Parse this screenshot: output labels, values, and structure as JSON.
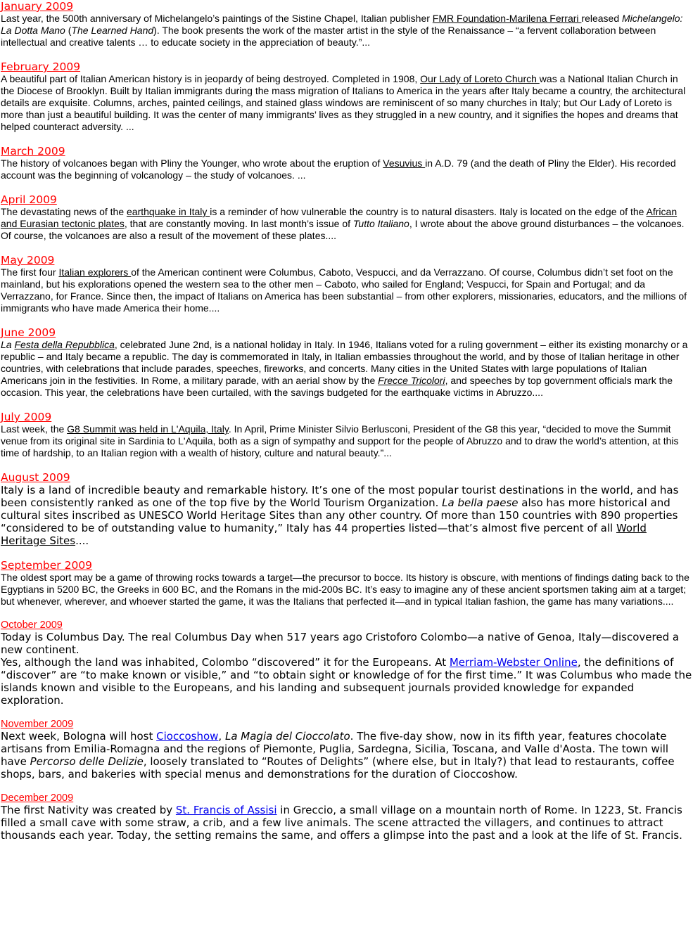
{
  "entries": {
    "jan": {
      "heading": "January 2009",
      "t1": " Last year, the 500th anniversary of Michelangelo’s paintings of the Sistine Chapel, Italian publisher ",
      "link1": "FMR Foundation-Marilena Ferrari ",
      "t2": "released ",
      "i1": "Michelangelo: La Dotta Mano",
      "t3": " (",
      "i2": "The Learned Hand",
      "t4": "). The book presents the work of the master artist in the style of the Renaissance – “a fervent collaboration between intellectual and creative talents … to educate society in the appreciation of beauty.”..."
    },
    "feb": {
      "heading": "February 2009",
      "t1": " A beautiful part of Italian American history is in jeopardy of being destroyed. Completed in 1908, ",
      "link1": "Our Lady of Loreto Church ",
      "t2": "was a National Italian Church in the Diocese of Brooklyn. Built by Italian immigrants during the mass migration of Italians to America in the years after Italy became a country, the architectural details are exquisite. Columns, arches, painted ceilings, and stained glass windows are reminiscent of so many churches in Italy; but Our Lady of Loreto is more than just a beautiful building. It was the center of many immigrants’ lives as they struggled in a new country, and it signifies the hopes and dreams that helped counteract adversity. ..."
    },
    "mar": {
      "heading": "March 2009",
      "t1": " The history of volcanoes began with Pliny the Younger, who wrote about the eruption of ",
      "link1": "Vesuvius ",
      "t2": "in A.D. 79 (and the death of Pliny the Elder). His recorded account was the beginning of volcanology – the study of volcanoes. ..."
    },
    "apr": {
      "heading": "April 2009",
      "t1": " The devastating news of the ",
      "link1": "earthquake in Italy ",
      "t2": "is a reminder of how vulnerable the country is to natural disasters. Italy is located on the edge of the ",
      "link2": "African and Eurasian tectonic plates",
      "t3": ", that are constantly moving. In last month’s issue of ",
      "i1": "Tutto Italiano",
      "t4": ", I wrote about the above ground disturbances – the volcanoes. Of course, the volcanoes are also a result of the movement of these plates...."
    },
    "may": {
      "heading": "May 2009",
      "t1": " The first four ",
      "link1": "Italian explorers ",
      "t2": "of the American continent were Columbus, Caboto, Vespucci, and da Verrazzano. Of course, Columbus didn’t set foot on the mainland, but his explorations opened the western sea to the other men – Caboto, who sailed for England; Vespucci, for Spain and Portugal; and da Verrazzano, for France. Since then, the impact of Italians on America has been substantial – from other explorers, missionaries, educators, and the millions of immigrants who have made America their home...."
    },
    "jun": {
      "heading": "June 2009",
      "i1": " La ",
      "link1": "Festa della Repubblica",
      "t1": ", celebrated June 2nd, is a national holiday in Italy. In 1946, Italians voted for a ruling government – either its existing monarchy or a republic – and Italy became a republic. The day is commemorated in Italy, in Italian embassies throughout the world, and by those of Italian heritage in other countries, with celebrations that include parades, speeches, fireworks, and concerts. Many cities in the United States with large populations of Italian Americans join in the festivities. In Rome, a military parade, with an aerial show by the ",
      "link2": "Frecce Tricolori",
      "t2": ", and speeches by top government officials mark the occasion. This year, the celebrations have been curtailed, with the savings budgeted for the earthquake victims in Abruzzo...."
    },
    "jul": {
      "heading": "July 2009",
      "t1": " Last week, the ",
      "link1": "G8 Summit was held in L'Aquila, Italy",
      "t2": ". In April, Prime Minister Silvio Berlusconi, President of the G8 this year, “decided to move the Summit venue from its original site in Sardinia to L'Aquila, both as a sign of sympathy and support for the people of Abruzzo and to draw the world’s attention, at this time of hardship, to an Italian region with a wealth of history, culture and natural beauty.”..."
    },
    "aug": {
      "heading": "August 2009",
      "t1": "  Italy is a land of incredible beauty and remarkable history. It’s one of the most popular tourist destinations in the world, and has been consistently ranked as one of the top five by the World Tourism Organization. ",
      "i1": "La bella paese",
      "t2": " also has more historical and cultural sites inscribed as UNESCO World Heritage Sites than any other country. Of more than 150 countries with 890 properties “considered to be of outstanding value to humanity,” Italy has 44 properties listed—that’s almost five percent of all ",
      "link1": "World Heritage Sites",
      "t3": "...."
    },
    "sep": {
      "heading": "September 2009",
      "t1": " The oldest sport may be a game of throwing rocks towards a target—the precursor to bocce. Its history is obscure, with mentions of findings dating back to the Egyptians in 5200 BC, the Greeks in 600 BC, and the Romans in the mid-200s BC. It’s easy to imagine any of these ancient sportsmen taking aim at a target; but whenever, wherever, and whoever started the game, it was the Italians that perfected it—and in typical Italian fashion, the game has many variations...."
    },
    "oct": {
      "heading": "October 2009",
      "p1": "Today is Columbus Day. The real Columbus Day when 517 years ago Cristoforo Colombo—a native of Genoa, Italy—discovered a new continent.",
      "t1": "Yes, although the land was inhabited, Colombo “discovered” it for the Europeans. At ",
      "link1": "Merriam-Webster Online",
      "t2": ", the definitions of “discover” are “to make known or visible,” and “to obtain sight or knowledge of for the first time.” It was Columbus who made the islands known and visible to the Europeans, and his landing and subsequent journals provided knowledge for expanded exploration."
    },
    "nov": {
      "heading": "November 2009",
      "t1": "Next week, Bologna will host ",
      "link1": "Cioccoshow",
      "t2": ", ",
      "i1": "La Magia del Cioccolato",
      "t3": ". The five-day show, now in its fifth year, features chocolate artisans from Emilia-Romagna and the regions of Piemonte, Puglia, Sardegna, Sicilia, Toscana, and Valle d'Aosta. The town will have ",
      "i2": "Percorso delle Delizie",
      "t4": ", loosely translated to “Routes of Delights” (where else, but in Italy?) that lead to restaurants, coffee shops, bars, and bakeries with special menus and demonstrations for the duration of Cioccoshow."
    },
    "dec": {
      "heading": "December 2009",
      "t1": "The first Nativity was created by ",
      "link1": "St. Francis of Assisi",
      "t2": " in Greccio, a small village on a mountain north of Rome. In 1223, St. Francis filled a small cave with some straw, a crib, and a few live animals. The scene attracted the villagers, and continues to attract thousands each year. Today, the setting remains the same, and offers a glimpse into the past and a look at the life of St. Francis."
    }
  }
}
